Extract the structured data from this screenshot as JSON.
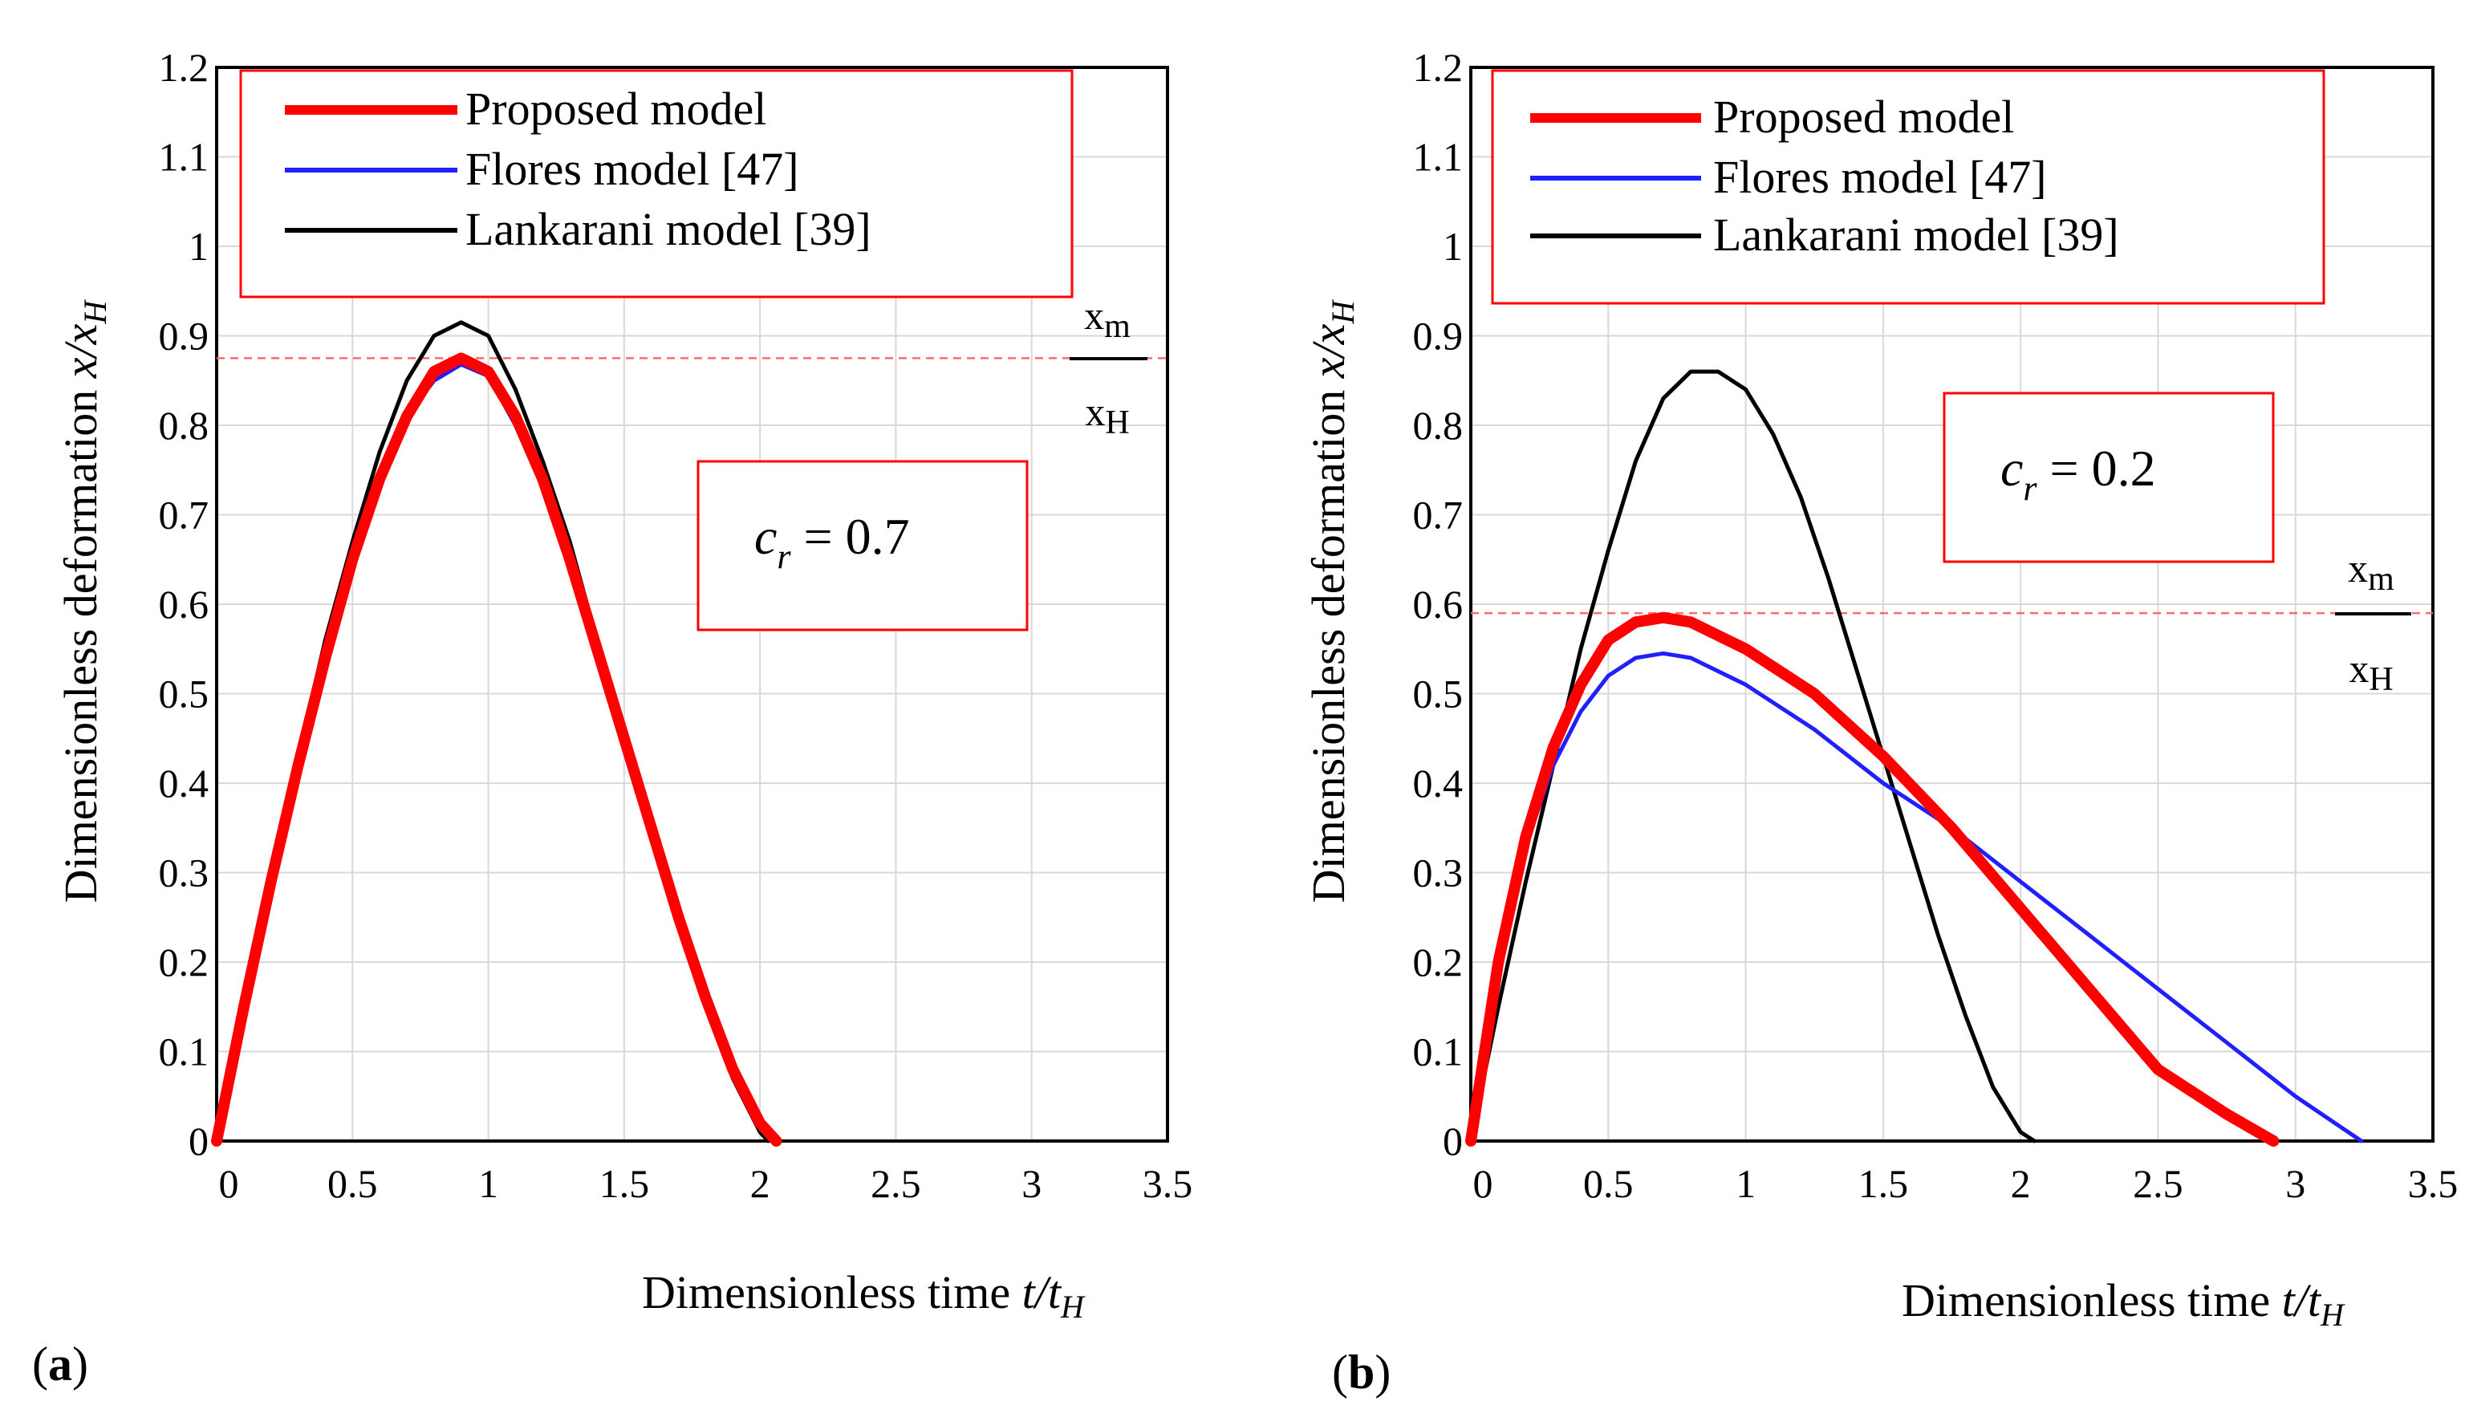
{
  "chart_data": [
    {
      "panel": "a",
      "panel_label": "a",
      "type": "line",
      "xlabel": "Dimensionless time",
      "xlabel_var": "t",
      "xlabel_sub": "H",
      "ylabel": "Dimensionless deformation",
      "ylabel_var": "x",
      "ylabel_sub": "H",
      "xlim": [
        0,
        3.5
      ],
      "ylim": [
        0,
        1.2
      ],
      "xticks": [
        "0",
        "0.5",
        "1",
        "1.5",
        "2",
        "2.5",
        "3",
        "3.5"
      ],
      "yticks": [
        "0",
        "0.1",
        "0.2",
        "0.3",
        "0.4",
        "0.5",
        "0.6",
        "0.7",
        "0.8",
        "0.9",
        "1",
        "1.1",
        "1.2"
      ],
      "grid": true,
      "legend_position": "top-left",
      "annotation": {
        "symbol": "c",
        "subscript": "r",
        "value": "= 0.7"
      },
      "ratio_marker": {
        "numerator": "x",
        "numerator_sub": "m",
        "denominator": "x",
        "denominator_sub": "H",
        "level": 0.875
      },
      "series": [
        {
          "name": "Proposed model",
          "color": "#ff0000",
          "width": 14,
          "x": [
            0,
            0.1,
            0.2,
            0.3,
            0.4,
            0.5,
            0.6,
            0.7,
            0.8,
            0.9,
            1.0,
            1.1,
            1.2,
            1.3,
            1.4,
            1.5,
            1.6,
            1.7,
            1.8,
            1.9,
            2.0,
            2.06
          ],
          "y": [
            0,
            0.15,
            0.29,
            0.42,
            0.54,
            0.65,
            0.74,
            0.81,
            0.86,
            0.875,
            0.86,
            0.81,
            0.74,
            0.65,
            0.55,
            0.45,
            0.35,
            0.25,
            0.16,
            0.08,
            0.02,
            0
          ]
        },
        {
          "name": "Flores model [47]",
          "color": "#1f1fff",
          "width": 5,
          "x": [
            0,
            0.1,
            0.2,
            0.3,
            0.4,
            0.5,
            0.6,
            0.7,
            0.8,
            0.9,
            1.0,
            1.1,
            1.2,
            1.3,
            1.4,
            1.5,
            1.6,
            1.7,
            1.8,
            1.9,
            2.0,
            2.06
          ],
          "y": [
            0,
            0.15,
            0.29,
            0.42,
            0.54,
            0.65,
            0.74,
            0.81,
            0.85,
            0.868,
            0.855,
            0.8,
            0.73,
            0.64,
            0.54,
            0.44,
            0.34,
            0.24,
            0.16,
            0.08,
            0.02,
            0
          ]
        },
        {
          "name": "Lankarani model [39]",
          "color": "#000000",
          "width": 5,
          "x": [
            0,
            0.1,
            0.2,
            0.3,
            0.4,
            0.5,
            0.6,
            0.7,
            0.8,
            0.9,
            1.0,
            1.1,
            1.2,
            1.3,
            1.4,
            1.5,
            1.6,
            1.7,
            1.8,
            1.9,
            2.0,
            2.03
          ],
          "y": [
            0,
            0.15,
            0.29,
            0.43,
            0.56,
            0.67,
            0.77,
            0.85,
            0.9,
            0.915,
            0.9,
            0.84,
            0.76,
            0.67,
            0.56,
            0.45,
            0.34,
            0.24,
            0.15,
            0.07,
            0.01,
            0
          ]
        }
      ]
    },
    {
      "panel": "b",
      "panel_label": "b",
      "type": "line",
      "xlabel": "Dimensionless time",
      "xlabel_var": "t",
      "xlabel_sub": "H",
      "ylabel": "Dimensionless deformation",
      "ylabel_var": "x",
      "ylabel_sub": "H",
      "xlim": [
        0,
        3.5
      ],
      "ylim": [
        0,
        1.2
      ],
      "xticks": [
        "0",
        "0.5",
        "1",
        "1.5",
        "2",
        "2.5",
        "3",
        "3.5"
      ],
      "yticks": [
        "0",
        "0.1",
        "0.2",
        "0.3",
        "0.4",
        "0.5",
        "0.6",
        "0.7",
        "0.8",
        "0.9",
        "1",
        "1.1",
        "1.2"
      ],
      "grid": true,
      "legend_position": "top-left",
      "annotation": {
        "symbol": "c",
        "subscript": "r",
        "value": "= 0.2"
      },
      "ratio_marker": {
        "numerator": "x",
        "numerator_sub": "m",
        "denominator": "x",
        "denominator_sub": "H",
        "level": 0.59
      },
      "series": [
        {
          "name": "Proposed model",
          "color": "#ff0000",
          "width": 14,
          "x": [
            0,
            0.1,
            0.2,
            0.3,
            0.4,
            0.5,
            0.6,
            0.7,
            0.8,
            1.0,
            1.25,
            1.5,
            1.75,
            2.0,
            2.25,
            2.5,
            2.75,
            2.92
          ],
          "y": [
            0,
            0.2,
            0.34,
            0.44,
            0.51,
            0.56,
            0.58,
            0.585,
            0.58,
            0.55,
            0.5,
            0.43,
            0.35,
            0.26,
            0.17,
            0.08,
            0.03,
            0
          ]
        },
        {
          "name": "Flores model [47]",
          "color": "#1f1fff",
          "width": 5,
          "x": [
            0,
            0.1,
            0.2,
            0.3,
            0.4,
            0.5,
            0.6,
            0.7,
            0.8,
            1.0,
            1.25,
            1.5,
            1.75,
            2.0,
            2.25,
            2.5,
            2.75,
            3.0,
            3.24
          ],
          "y": [
            0,
            0.2,
            0.33,
            0.42,
            0.48,
            0.52,
            0.54,
            0.545,
            0.54,
            0.51,
            0.46,
            0.4,
            0.35,
            0.29,
            0.23,
            0.17,
            0.11,
            0.05,
            0
          ]
        },
        {
          "name": "Lankarani model [39]",
          "color": "#000000",
          "width": 5,
          "x": [
            0,
            0.1,
            0.2,
            0.3,
            0.4,
            0.5,
            0.6,
            0.7,
            0.8,
            0.9,
            1.0,
            1.1,
            1.2,
            1.3,
            1.4,
            1.5,
            1.6,
            1.7,
            1.8,
            1.9,
            2.0,
            2.05
          ],
          "y": [
            0,
            0.15,
            0.29,
            0.42,
            0.55,
            0.66,
            0.76,
            0.83,
            0.86,
            0.86,
            0.84,
            0.79,
            0.72,
            0.63,
            0.53,
            0.43,
            0.33,
            0.23,
            0.14,
            0.06,
            0.01,
            0
          ]
        }
      ]
    }
  ]
}
